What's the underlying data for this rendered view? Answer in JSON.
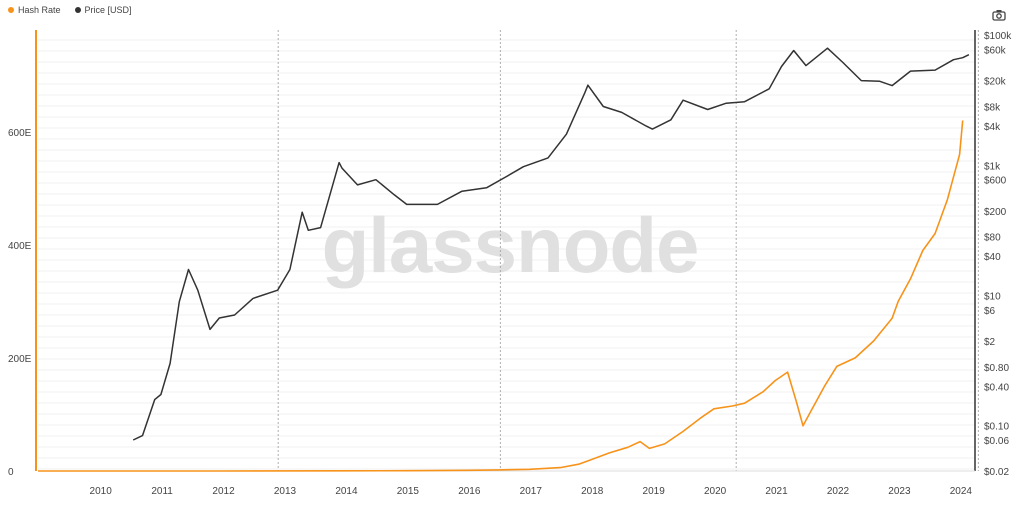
{
  "legend": [
    {
      "label": "Hash Rate",
      "color": "#f7931a"
    },
    {
      "label": "Price [USD]",
      "color": "#333333"
    }
  ],
  "toolbar": {
    "screenshot_icon": "camera-icon"
  },
  "watermark": "glassnode",
  "chart_data": {
    "type": "line",
    "x_ticks": [
      "2010",
      "2011",
      "2012",
      "2013",
      "2014",
      "2015",
      "2016",
      "2017",
      "2018",
      "2019",
      "2020",
      "2021",
      "2022",
      "2023",
      "2024"
    ],
    "y_left_ticks": [
      "0",
      "200E",
      "400E",
      "600E"
    ],
    "y_left_range": [
      0,
      780
    ],
    "y_right_ticks": [
      "$0.02",
      "$0.06",
      "$0.10",
      "$0.40",
      "$0.80",
      "$2",
      "$6",
      "$10",
      "$40",
      "$80",
      "$200",
      "$600",
      "$1k",
      "$4k",
      "$8k",
      "$20k",
      "$60k",
      "$100k"
    ],
    "y_right_scale": "log",
    "y_right_range": [
      0.02,
      120000
    ],
    "halving_markers": [
      "2012-11-28",
      "2016-07-09",
      "2020-05-11",
      "2024-04-20"
    ],
    "grid": true,
    "series": [
      {
        "name": "Hash Rate",
        "axis": "left",
        "color": "#f7931a",
        "x": [
          2009.0,
          2012.0,
          2014.0,
          2015.0,
          2016.0,
          2016.5,
          2017.0,
          2017.5,
          2017.8,
          2018.0,
          2018.3,
          2018.6,
          2018.8,
          2018.95,
          2019.2,
          2019.5,
          2019.8,
          2020.0,
          2020.3,
          2020.5,
          2020.8,
          2021.0,
          2021.2,
          2021.35,
          2021.45,
          2021.6,
          2021.8,
          2022.0,
          2022.3,
          2022.6,
          2022.9,
          2023.0,
          2023.2,
          2023.4,
          2023.6,
          2023.8,
          2024.0,
          2024.05
        ],
        "y": [
          0,
          0.01,
          0.3,
          0.5,
          1.2,
          2,
          3,
          6,
          12,
          20,
          32,
          42,
          52,
          40,
          48,
          70,
          95,
          110,
          115,
          120,
          140,
          160,
          175,
          120,
          80,
          110,
          150,
          185,
          200,
          230,
          270,
          300,
          340,
          390,
          420,
          480,
          560,
          620
        ]
      },
      {
        "name": "Price [USD]",
        "axis": "right",
        "color": "#333333",
        "x": [
          2010.55,
          2010.7,
          2010.9,
          2011.0,
          2011.15,
          2011.3,
          2011.45,
          2011.6,
          2011.8,
          2011.95,
          2012.2,
          2012.5,
          2012.9,
          2013.1,
          2013.3,
          2013.4,
          2013.6,
          2013.9,
          2013.95,
          2014.2,
          2014.5,
          2014.8,
          2015.0,
          2015.5,
          2015.9,
          2016.3,
          2016.6,
          2016.9,
          2017.3,
          2017.6,
          2017.9,
          2017.95,
          2018.2,
          2018.5,
          2018.9,
          2019.0,
          2019.3,
          2019.5,
          2019.9,
          2020.2,
          2020.5,
          2020.9,
          2021.1,
          2021.3,
          2021.5,
          2021.85,
          2022.1,
          2022.4,
          2022.7,
          2022.9,
          2023.2,
          2023.6,
          2023.9,
          2024.05,
          2024.15
        ],
        "y": [
          0.06,
          0.07,
          0.25,
          0.3,
          0.9,
          8,
          25,
          12,
          3,
          4.5,
          5,
          9,
          12,
          25,
          190,
          100,
          110,
          1100,
          900,
          500,
          600,
          350,
          250,
          250,
          400,
          450,
          650,
          950,
          1300,
          3000,
          13000,
          17000,
          8000,
          6500,
          4000,
          3600,
          5000,
          10000,
          7200,
          9000,
          9500,
          15000,
          33000,
          58000,
          34000,
          63000,
          38000,
          20000,
          19500,
          16800,
          28000,
          29000,
          42000,
          45000,
          50000
        ]
      }
    ]
  }
}
